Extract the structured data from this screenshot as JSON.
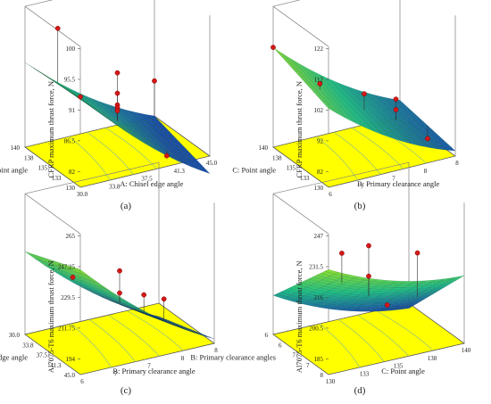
{
  "chart_data": [
    {
      "type": "surface",
      "panel_caption": "(a)",
      "zlabel": "CFRP maximum thrust force, N",
      "xlabel": "A: Chisel edge angle",
      "ylabel": "C: Point  angle",
      "x_ticks": [
        "30.0",
        "33.8",
        "37.5",
        "41.3",
        "45.0"
      ],
      "y_ticks": [
        "130",
        "133",
        "135",
        "138",
        "140"
      ],
      "z_ticks": [
        "82",
        "86.5",
        "91",
        "95.5",
        "100"
      ],
      "xlim": [
        30,
        45
      ],
      "ylim": [
        130,
        140
      ],
      "zlim": [
        82,
        100
      ],
      "surface_corners": {
        "x_min_y_min": 97.5,
        "x_max_y_min": 79,
        "x_min_y_max": 96.5,
        "x_max_y_max": 82
      },
      "points": [
        {
          "x": 30,
          "y": 130,
          "z": 97.5
        },
        {
          "x": 33.8,
          "y": 140,
          "z": 101
        },
        {
          "x": 37.5,
          "y": 135,
          "z": 95.5
        },
        {
          "x": 37.5,
          "y": 135,
          "z": 92
        },
        {
          "x": 37.5,
          "y": 135,
          "z": 90
        },
        {
          "x": 37.5,
          "y": 135,
          "z": 89.5
        },
        {
          "x": 37.5,
          "y": 135,
          "z": 89
        },
        {
          "x": 41.3,
          "y": 132,
          "z": 82
        },
        {
          "x": 45,
          "y": 140,
          "z": 88
        }
      ]
    },
    {
      "type": "surface",
      "panel_caption": "(b)",
      "zlabel": "CFRP maximum thrust force, N",
      "xlabel": "B: Primary clearance angle",
      "ylabel": "C: Point  angle",
      "x_ticks": [
        "6",
        "7",
        "7",
        "8",
        "8"
      ],
      "y_ticks": [
        "130",
        "133",
        "135",
        "138",
        "140"
      ],
      "z_ticks": [
        "82",
        "92",
        "102",
        "112",
        "122"
      ],
      "xlim": [
        6,
        8
      ],
      "ylim": [
        130,
        140
      ],
      "zlim": [
        82,
        122
      ],
      "surface_corners": {
        "x_min_y_min": 112,
        "x_max_y_min": 84,
        "x_min_y_max": 120,
        "x_max_y_max": 88
      },
      "points": [
        {
          "x": 6,
          "y": 140,
          "z": 120
        },
        {
          "x": 6.3,
          "y": 135,
          "z": 112
        },
        {
          "x": 7,
          "y": 135,
          "z": 104
        },
        {
          "x": 7.5,
          "y": 135,
          "z": 99
        },
        {
          "x": 7.5,
          "y": 135,
          "z": 95
        },
        {
          "x": 8,
          "y": 135,
          "z": 81
        }
      ]
    },
    {
      "type": "surface",
      "panel_caption": "(c)",
      "zlabel": "Al7075-T6 maximum thrust force, N",
      "xlabel": "B: Primary clearance angle",
      "ylabel": "A: Chisel edge angle",
      "x_ticks": [
        "6",
        "7",
        "7",
        "8",
        "8"
      ],
      "y_ticks": [
        "45.0",
        "41.3",
        "37.5",
        "33.8",
        "30.0"
      ],
      "z_ticks": [
        "194",
        "211.75",
        "229.5",
        "247.25",
        "265"
      ],
      "xlim": [
        6,
        8
      ],
      "ylim": [
        30,
        45
      ],
      "zlim": [
        194,
        265
      ],
      "surface_corners": {
        "x_min_y_min": 265,
        "x_max_y_min": 197,
        "x_min_y_max": 250,
        "x_max_y_max": 185
      },
      "points": [
        {
          "x": 6.3,
          "y": 37.5,
          "z": 243
        },
        {
          "x": 7,
          "y": 37.5,
          "z": 240
        },
        {
          "x": 7,
          "y": 37.5,
          "z": 225
        },
        {
          "x": 7.5,
          "y": 40,
          "z": 214
        },
        {
          "x": 7.8,
          "y": 40,
          "z": 208
        }
      ]
    },
    {
      "type": "surface",
      "panel_caption": "(d)",
      "zlabel": "Al7075-T6 maximum thrust force, N",
      "xlabel": "C: Point  angle",
      "ylabel": "B: Primary clearance angles",
      "x_ticks": [
        "130",
        "133",
        "135",
        "138",
        "140"
      ],
      "y_ticks": [
        "8",
        "7",
        "7",
        "6",
        "6"
      ],
      "z_ticks": [
        "185",
        "200.5",
        "216",
        "231.5",
        "247"
      ],
      "xlim": [
        130,
        140
      ],
      "ylim": [
        6,
        8
      ],
      "zlim": [
        185,
        247
      ],
      "surface_corners": {
        "x_min_y_min": 247,
        "x_max_y_min": 225,
        "x_min_y_max": 208,
        "x_max_y_max": 182
      },
      "points": [
        {
          "x": 132,
          "y": 6.5,
          "z": 247
        },
        {
          "x": 135,
          "y": 7,
          "z": 240
        },
        {
          "x": 135,
          "y": 7,
          "z": 222
        },
        {
          "x": 139,
          "y": 7.2,
          "z": 226
        },
        {
          "x": 138,
          "y": 7.8,
          "z": 190
        }
      ]
    }
  ],
  "colors": {
    "floor": "#ffff00",
    "surface_low": "#1a4fa8",
    "surface_mid": "#1fbf86",
    "surface_high": "#8ce02c",
    "point": "#d61818",
    "box_line": "#808080"
  }
}
